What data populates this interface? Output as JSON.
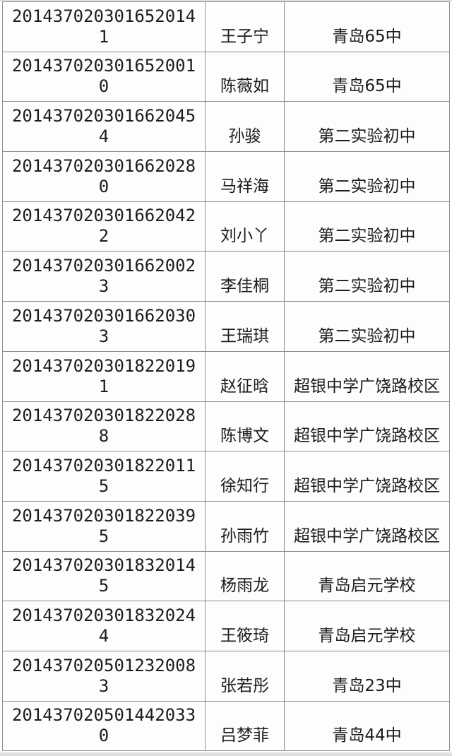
{
  "colors": {
    "border": "#8e8e8e",
    "text": "#1c1c1c",
    "cell_background": "#fdfdfd",
    "page_background": "#ffffff",
    "outer_background": "#dedede"
  },
  "table": {
    "rows": [
      {
        "id": "2014370203016520141",
        "name": "王子宁",
        "school": "青岛65中"
      },
      {
        "id": "2014370203016520010",
        "name": "陈薇如",
        "school": "青岛65中"
      },
      {
        "id": "2014370203016620454",
        "name": "孙骏",
        "school": "第二实验初中"
      },
      {
        "id": "2014370203016620280",
        "name": "马祥海",
        "school": "第二实验初中"
      },
      {
        "id": "2014370203016620422",
        "name": "刘小丫",
        "school": "第二实验初中"
      },
      {
        "id": "2014370203016620023",
        "name": "李佳桐",
        "school": "第二实验初中"
      },
      {
        "id": "2014370203016620303",
        "name": "王瑞琪",
        "school": "第二实验初中"
      },
      {
        "id": "2014370203018220191",
        "name": "赵征晗",
        "school": "超银中学广饶路校区"
      },
      {
        "id": "2014370203018220288",
        "name": "陈博文",
        "school": "超银中学广饶路校区"
      },
      {
        "id": "2014370203018220115",
        "name": "徐知行",
        "school": "超银中学广饶路校区"
      },
      {
        "id": "2014370203018220395",
        "name": "孙雨竹",
        "school": "超银中学广饶路校区"
      },
      {
        "id": "2014370203018320145",
        "name": "杨雨龙",
        "school": "青岛启元学校"
      },
      {
        "id": "2014370203018320244",
        "name": "王筱琦",
        "school": "青岛启元学校"
      },
      {
        "id": "2014370205012320083",
        "name": "张若彤",
        "school": "青岛23中"
      },
      {
        "id": "2014370205014420330",
        "name": "吕梦菲",
        "school": "青岛44中"
      }
    ]
  }
}
